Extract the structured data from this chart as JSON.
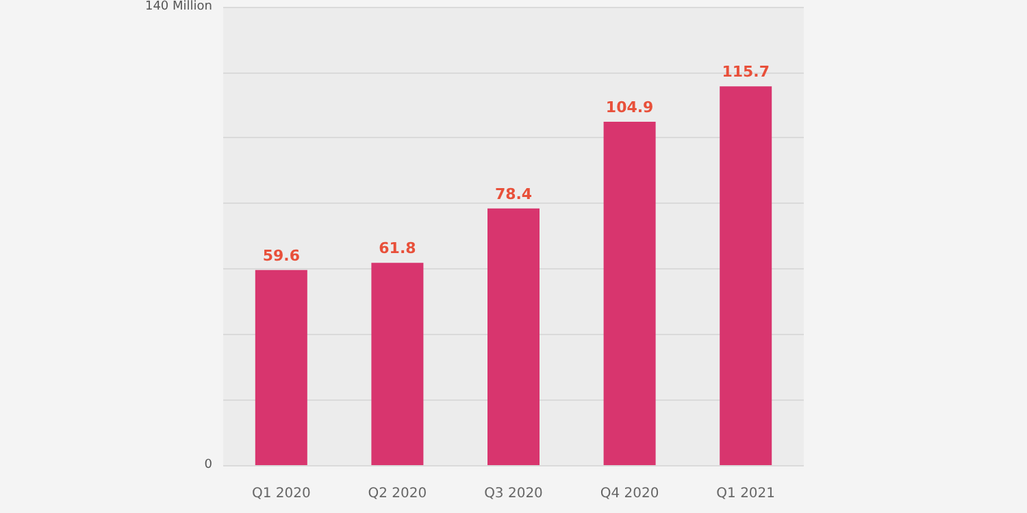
{
  "chart_data": {
    "type": "bar",
    "categories": [
      "Q1 2020",
      "Q2 2020",
      "Q3 2020",
      "Q4 2020",
      "Q1 2021"
    ],
    "values": [
      59.6,
      61.8,
      78.4,
      104.9,
      115.7
    ],
    "color": "#d8356e",
    "data_labels": true,
    "ylim": [
      0,
      140
    ],
    "yticks": [
      0,
      {
        "value": 20,
        "label": null
      },
      {
        "value": 40,
        "label": null
      },
      {
        "value": 60,
        "label": null
      },
      {
        "value": 80,
        "label": null
      },
      {
        "value": 100,
        "label": null
      },
      {
        "value": 120,
        "label": null
      },
      {
        "value": 140,
        "label": "140 Million"
      }
    ],
    "grid": "y"
  }
}
